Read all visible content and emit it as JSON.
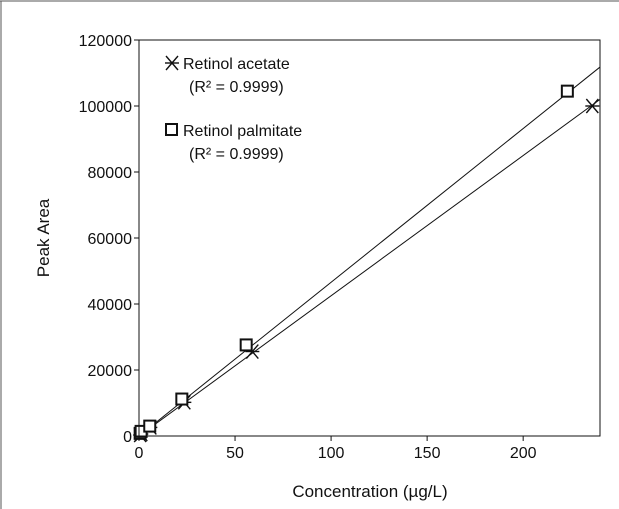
{
  "chart_data": {
    "type": "scatter",
    "xlabel": "Concentration (µg/L)",
    "ylabel": "Peak Area",
    "xlim": [
      0,
      240
    ],
    "ylim": [
      0,
      120000
    ],
    "x_ticks": [
      0,
      50,
      100,
      150,
      200
    ],
    "y_ticks": [
      0,
      20000,
      40000,
      60000,
      80000,
      100000,
      120000
    ],
    "x_tick_labels": [
      "0",
      "50",
      "100",
      "150",
      "200"
    ],
    "y_tick_labels": [
      "0",
      "20000",
      "40000",
      "60000",
      "80000",
      "100000",
      "120000"
    ],
    "grid": false,
    "legend_position": "top-left",
    "series": [
      {
        "name": "Retinol acetate",
        "legend_sub": "(R² = 0.9999)",
        "marker": "asterisk",
        "x": [
          0.6,
          1.2,
          5.9,
          23.6,
          59.0,
          236.0
        ],
        "y": [
          300,
          600,
          2600,
          10200,
          25600,
          100000
        ],
        "fit_line": [
          [
            0,
            0
          ],
          [
            240,
            102000
          ]
        ]
      },
      {
        "name": "Retinol palmitate",
        "legend_sub": "(R² = 0.9999)",
        "marker": "square",
        "x": [
          0.6,
          1.1,
          5.6,
          22.3,
          55.8,
          223.0
        ],
        "y": [
          800,
          1400,
          3000,
          11200,
          27600,
          104500
        ],
        "fit_line": [
          [
            0,
            0
          ],
          [
            240,
            111800
          ]
        ]
      }
    ]
  }
}
